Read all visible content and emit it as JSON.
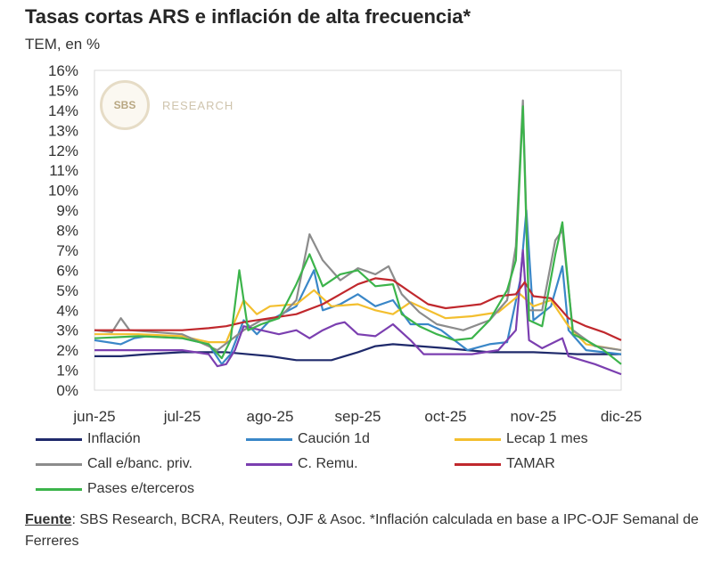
{
  "title": "Tasas cortas ARS e inflación de alta frecuencia*",
  "subtitle": "TEM, en %",
  "logo": {
    "mark": "SBS",
    "text": "RESEARCH"
  },
  "source": {
    "label": "Fuente",
    "text": ": SBS Research, BCRA, Reuters, OJF & Asoc. *Inflación calculada en base a IPC-OJF Semanal de Ferreres"
  },
  "chart_data": {
    "type": "line",
    "x_labels": [
      "jun-25",
      "jul-25",
      "ago-25",
      "sep-25",
      "oct-25",
      "nov-25",
      "dic-25"
    ],
    "x_range": [
      0,
      6
    ],
    "ylim": [
      0,
      16
    ],
    "y_ticks": [
      "0%",
      "1%",
      "2%",
      "3%",
      "4%",
      "5%",
      "6%",
      "7%",
      "8%",
      "9%",
      "10%",
      "11%",
      "12%",
      "13%",
      "14%",
      "15%",
      "16%"
    ],
    "grid": false,
    "legend_position": "bottom",
    "series": [
      {
        "name": "Inflación",
        "color": "#1f2a6b",
        "points": [
          [
            0,
            1.7
          ],
          [
            0.3,
            1.7
          ],
          [
            0.6,
            1.8
          ],
          [
            1,
            1.9
          ],
          [
            1.5,
            1.9
          ],
          [
            2,
            1.7
          ],
          [
            2.3,
            1.5
          ],
          [
            2.7,
            1.5
          ],
          [
            3,
            1.9
          ],
          [
            3.2,
            2.2
          ],
          [
            3.4,
            2.3
          ],
          [
            3.7,
            2.2
          ],
          [
            4,
            2.1
          ],
          [
            4.5,
            1.9
          ],
          [
            5,
            1.9
          ],
          [
            5.5,
            1.8
          ],
          [
            6,
            1.8
          ]
        ]
      },
      {
        "name": "Caución 1d",
        "color": "#3a87c8",
        "points": [
          [
            0,
            2.5
          ],
          [
            0.3,
            2.3
          ],
          [
            0.45,
            2.6
          ],
          [
            0.6,
            2.7
          ],
          [
            1,
            2.6
          ],
          [
            1.3,
            2.3
          ],
          [
            1.45,
            1.3
          ],
          [
            1.55,
            1.8
          ],
          [
            1.7,
            3.5
          ],
          [
            1.85,
            2.8
          ],
          [
            2,
            3.5
          ],
          [
            2.3,
            4.2
          ],
          [
            2.5,
            6.0
          ],
          [
            2.6,
            4.0
          ],
          [
            2.8,
            4.3
          ],
          [
            3,
            4.8
          ],
          [
            3.2,
            4.2
          ],
          [
            3.4,
            4.5
          ],
          [
            3.6,
            3.3
          ],
          [
            3.8,
            3.3
          ],
          [
            3.95,
            3.0
          ],
          [
            4.1,
            2.5
          ],
          [
            4.25,
            2.0
          ],
          [
            4.5,
            2.3
          ],
          [
            4.7,
            2.4
          ],
          [
            4.85,
            5.5
          ],
          [
            4.92,
            9.0
          ],
          [
            5.0,
            3.5
          ],
          [
            5.2,
            4.2
          ],
          [
            5.33,
            6.2
          ],
          [
            5.4,
            3.0
          ],
          [
            5.6,
            2.0
          ],
          [
            6,
            1.8
          ]
        ]
      },
      {
        "name": "Lecap 1 mes",
        "color": "#f3bf2f",
        "points": [
          [
            0,
            2.8
          ],
          [
            0.5,
            2.8
          ],
          [
            1,
            2.7
          ],
          [
            1.3,
            2.4
          ],
          [
            1.5,
            2.4
          ],
          [
            1.7,
            4.5
          ],
          [
            1.85,
            3.8
          ],
          [
            2,
            4.2
          ],
          [
            2.3,
            4.3
          ],
          [
            2.5,
            5.0
          ],
          [
            2.7,
            4.2
          ],
          [
            3,
            4.3
          ],
          [
            3.2,
            4.0
          ],
          [
            3.4,
            3.8
          ],
          [
            3.6,
            4.4
          ],
          [
            3.8,
            4.0
          ],
          [
            4,
            3.6
          ],
          [
            4.3,
            3.7
          ],
          [
            4.6,
            3.9
          ],
          [
            4.85,
            4.8
          ],
          [
            5,
            4.2
          ],
          [
            5.2,
            4.5
          ],
          [
            5.4,
            3.2
          ],
          [
            5.6,
            2.3
          ],
          [
            6,
            2.0
          ]
        ]
      },
      {
        "name": "Call e/banc. priv.",
        "color": "#8c8c8c",
        "points": [
          [
            0,
            3.0
          ],
          [
            0.2,
            2.9
          ],
          [
            0.3,
            3.6
          ],
          [
            0.4,
            3.0
          ],
          [
            1,
            2.8
          ],
          [
            1.4,
            2.0
          ],
          [
            1.7,
            3.0
          ],
          [
            1.9,
            3.5
          ],
          [
            2.1,
            3.6
          ],
          [
            2.3,
            4.5
          ],
          [
            2.45,
            7.8
          ],
          [
            2.6,
            6.5
          ],
          [
            2.8,
            5.5
          ],
          [
            3,
            6.1
          ],
          [
            3.2,
            5.8
          ],
          [
            3.35,
            6.2
          ],
          [
            3.5,
            4.8
          ],
          [
            3.7,
            3.9
          ],
          [
            3.9,
            3.3
          ],
          [
            4.2,
            3.0
          ],
          [
            4.5,
            3.5
          ],
          [
            4.7,
            4.5
          ],
          [
            4.8,
            7.2
          ],
          [
            4.88,
            14.5
          ],
          [
            4.95,
            4.0
          ],
          [
            5.1,
            4.0
          ],
          [
            5.25,
            7.5
          ],
          [
            5.33,
            8.0
          ],
          [
            5.45,
            3.0
          ],
          [
            5.7,
            2.2
          ],
          [
            6,
            2.0
          ]
        ]
      },
      {
        "name": "C. Remu.",
        "color": "#7b3fb0",
        "points": [
          [
            0,
            2.0
          ],
          [
            0.5,
            2.0
          ],
          [
            1,
            2.0
          ],
          [
            1.3,
            1.8
          ],
          [
            1.4,
            1.2
          ],
          [
            1.5,
            1.3
          ],
          [
            1.6,
            2.0
          ],
          [
            1.7,
            3.2
          ],
          [
            1.9,
            3.0
          ],
          [
            2.1,
            2.8
          ],
          [
            2.3,
            3.0
          ],
          [
            2.45,
            2.6
          ],
          [
            2.6,
            3.0
          ],
          [
            2.75,
            3.3
          ],
          [
            2.85,
            3.4
          ],
          [
            3.0,
            2.8
          ],
          [
            3.2,
            2.7
          ],
          [
            3.4,
            3.3
          ],
          [
            3.6,
            2.5
          ],
          [
            3.75,
            1.8
          ],
          [
            4,
            1.8
          ],
          [
            4.3,
            1.8
          ],
          [
            4.6,
            2.0
          ],
          [
            4.8,
            3.0
          ],
          [
            4.88,
            7.0
          ],
          [
            4.95,
            2.5
          ],
          [
            5.1,
            2.1
          ],
          [
            5.33,
            2.6
          ],
          [
            5.4,
            1.7
          ],
          [
            5.7,
            1.3
          ],
          [
            6,
            0.8
          ]
        ]
      },
      {
        "name": "TAMAR",
        "color": "#c0282d",
        "points": [
          [
            0,
            3.0
          ],
          [
            0.5,
            3.0
          ],
          [
            1,
            3.0
          ],
          [
            1.3,
            3.1
          ],
          [
            1.5,
            3.2
          ],
          [
            1.7,
            3.4
          ],
          [
            2,
            3.6
          ],
          [
            2.3,
            3.8
          ],
          [
            2.6,
            4.3
          ],
          [
            2.8,
            4.8
          ],
          [
            3,
            5.3
          ],
          [
            3.2,
            5.6
          ],
          [
            3.4,
            5.5
          ],
          [
            3.5,
            5.2
          ],
          [
            3.6,
            4.9
          ],
          [
            3.8,
            4.3
          ],
          [
            4,
            4.1
          ],
          [
            4.2,
            4.2
          ],
          [
            4.4,
            4.3
          ],
          [
            4.6,
            4.7
          ],
          [
            4.8,
            4.8
          ],
          [
            4.9,
            5.4
          ],
          [
            5,
            4.7
          ],
          [
            5.2,
            4.6
          ],
          [
            5.4,
            3.6
          ],
          [
            5.6,
            3.2
          ],
          [
            5.8,
            2.9
          ],
          [
            6,
            2.5
          ]
        ]
      },
      {
        "name": "Pases e/terceros",
        "color": "#3cb44b",
        "points": [
          [
            0,
            2.6
          ],
          [
            0.5,
            2.7
          ],
          [
            1,
            2.6
          ],
          [
            1.3,
            2.3
          ],
          [
            1.45,
            1.6
          ],
          [
            1.55,
            2.5
          ],
          [
            1.65,
            6.0
          ],
          [
            1.75,
            3.0
          ],
          [
            1.9,
            3.3
          ],
          [
            2.1,
            3.6
          ],
          [
            2.3,
            5.3
          ],
          [
            2.45,
            6.8
          ],
          [
            2.6,
            5.2
          ],
          [
            2.8,
            5.8
          ],
          [
            3,
            6.0
          ],
          [
            3.2,
            5.2
          ],
          [
            3.4,
            5.3
          ],
          [
            3.5,
            3.8
          ],
          [
            3.7,
            3.2
          ],
          [
            3.9,
            2.8
          ],
          [
            4.1,
            2.5
          ],
          [
            4.3,
            2.6
          ],
          [
            4.5,
            3.5
          ],
          [
            4.7,
            5.0
          ],
          [
            4.8,
            6.5
          ],
          [
            4.88,
            14.2
          ],
          [
            4.95,
            3.5
          ],
          [
            5.1,
            3.2
          ],
          [
            5.25,
            6.8
          ],
          [
            5.33,
            8.4
          ],
          [
            5.45,
            2.8
          ],
          [
            5.6,
            2.5
          ],
          [
            5.8,
            2.0
          ],
          [
            6,
            1.3
          ]
        ]
      }
    ],
    "legend_rows": [
      [
        "Inflación",
        "Caución 1d",
        "Lecap 1 mes"
      ],
      [
        "Call e/banc. priv.",
        "C. Remu.",
        "TAMAR"
      ],
      [
        "Pases e/terceros"
      ]
    ]
  }
}
